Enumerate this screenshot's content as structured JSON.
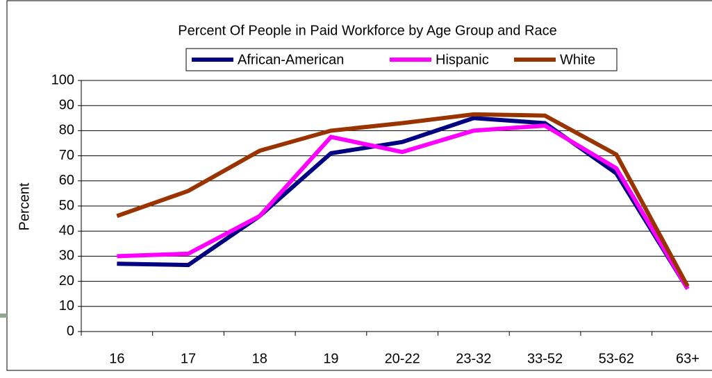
{
  "chart_data": {
    "type": "line",
    "title": "Percent Of People in Paid Workforce by Age Group and Race",
    "y_label": "Percent",
    "categories": [
      "16",
      "17",
      "18",
      "19",
      "20-22",
      "23-32",
      "33-52",
      "53-62",
      "63+"
    ],
    "series": [
      {
        "name": "African-American",
        "color": "#000080",
        "values": [
          27,
          26.5,
          46,
          71,
          75.5,
          85,
          83,
          63,
          17
        ]
      },
      {
        "name": "Hispanic",
        "color": "#ff00ff",
        "values": [
          30,
          31,
          46,
          77.5,
          71.5,
          80,
          82,
          65,
          17
        ]
      },
      {
        "name": "White",
        "color": "#993300",
        "values": [
          46,
          56,
          72,
          80,
          83,
          86.5,
          86,
          70.5,
          18
        ]
      }
    ],
    "ylim": [
      0,
      100
    ],
    "yticks": [
      0,
      10,
      20,
      30,
      40,
      50,
      60,
      70,
      80,
      90,
      100
    ],
    "grid": true
  }
}
